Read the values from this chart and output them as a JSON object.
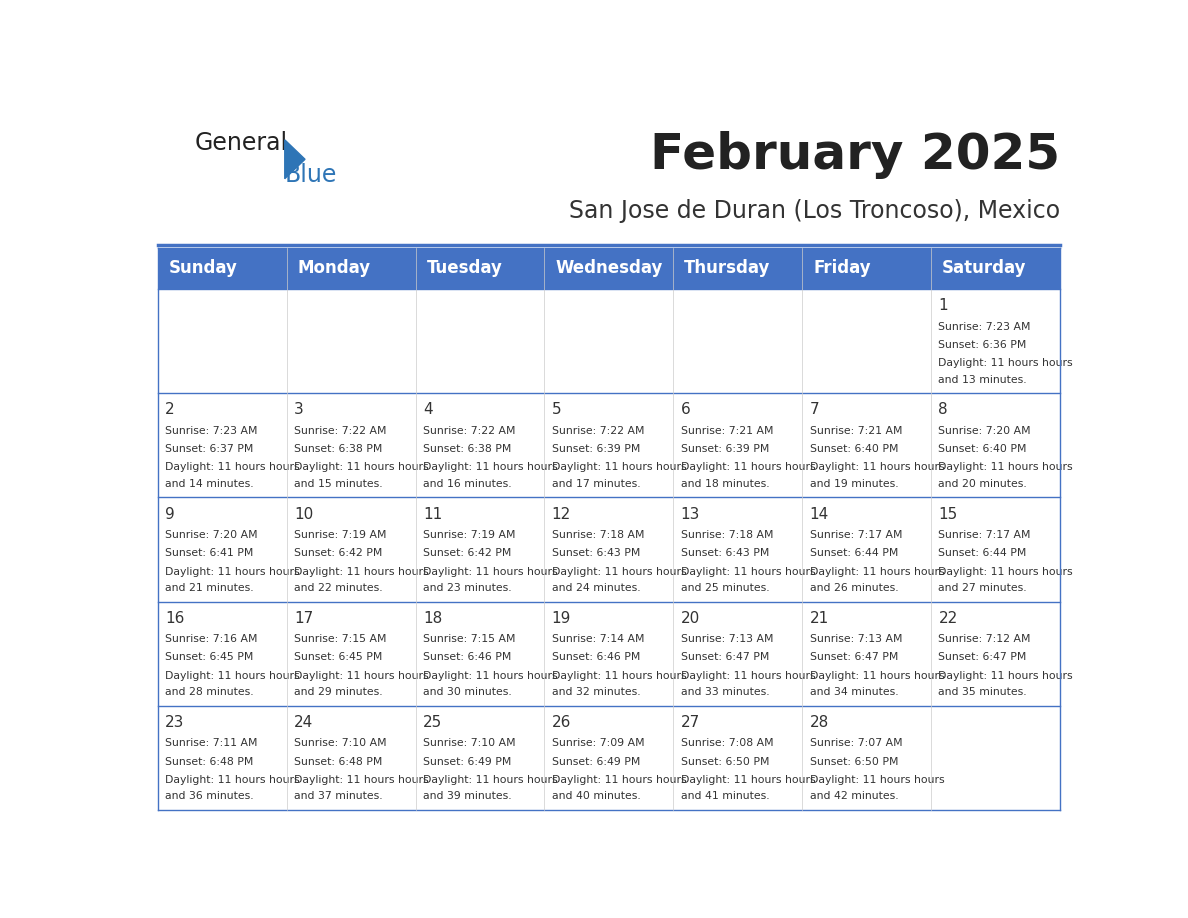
{
  "title": "February 2025",
  "subtitle": "San Jose de Duran (Los Troncoso), Mexico",
  "header_bg": "#4472C4",
  "header_text_color": "#FFFFFF",
  "header_days": [
    "Sunday",
    "Monday",
    "Tuesday",
    "Wednesday",
    "Thursday",
    "Friday",
    "Saturday"
  ],
  "odd_row_bg": "#FFFFFF",
  "even_row_bg": "#F2F2F2",
  "cell_border_color": "#4472C4",
  "day_number_color": "#333333",
  "info_text_color": "#333333",
  "background_color": "#FFFFFF",
  "title_color": "#222222",
  "subtitle_color": "#333333",
  "logo_general_color": "#222222",
  "logo_blue_color": "#2E75B6",
  "days_data": [
    {
      "day": 1,
      "col": 6,
      "row": 0,
      "sunrise": "7:23 AM",
      "sunset": "6:36 PM",
      "daylight": "11 hours and 13 minutes."
    },
    {
      "day": 2,
      "col": 0,
      "row": 1,
      "sunrise": "7:23 AM",
      "sunset": "6:37 PM",
      "daylight": "11 hours and 14 minutes."
    },
    {
      "day": 3,
      "col": 1,
      "row": 1,
      "sunrise": "7:22 AM",
      "sunset": "6:38 PM",
      "daylight": "11 hours and 15 minutes."
    },
    {
      "day": 4,
      "col": 2,
      "row": 1,
      "sunrise": "7:22 AM",
      "sunset": "6:38 PM",
      "daylight": "11 hours and 16 minutes."
    },
    {
      "day": 5,
      "col": 3,
      "row": 1,
      "sunrise": "7:22 AM",
      "sunset": "6:39 PM",
      "daylight": "11 hours and 17 minutes."
    },
    {
      "day": 6,
      "col": 4,
      "row": 1,
      "sunrise": "7:21 AM",
      "sunset": "6:39 PM",
      "daylight": "11 hours and 18 minutes."
    },
    {
      "day": 7,
      "col": 5,
      "row": 1,
      "sunrise": "7:21 AM",
      "sunset": "6:40 PM",
      "daylight": "11 hours and 19 minutes."
    },
    {
      "day": 8,
      "col": 6,
      "row": 1,
      "sunrise": "7:20 AM",
      "sunset": "6:40 PM",
      "daylight": "11 hours and 20 minutes."
    },
    {
      "day": 9,
      "col": 0,
      "row": 2,
      "sunrise": "7:20 AM",
      "sunset": "6:41 PM",
      "daylight": "11 hours and 21 minutes."
    },
    {
      "day": 10,
      "col": 1,
      "row": 2,
      "sunrise": "7:19 AM",
      "sunset": "6:42 PM",
      "daylight": "11 hours and 22 minutes."
    },
    {
      "day": 11,
      "col": 2,
      "row": 2,
      "sunrise": "7:19 AM",
      "sunset": "6:42 PM",
      "daylight": "11 hours and 23 minutes."
    },
    {
      "day": 12,
      "col": 3,
      "row": 2,
      "sunrise": "7:18 AM",
      "sunset": "6:43 PM",
      "daylight": "11 hours and 24 minutes."
    },
    {
      "day": 13,
      "col": 4,
      "row": 2,
      "sunrise": "7:18 AM",
      "sunset": "6:43 PM",
      "daylight": "11 hours and 25 minutes."
    },
    {
      "day": 14,
      "col": 5,
      "row": 2,
      "sunrise": "7:17 AM",
      "sunset": "6:44 PM",
      "daylight": "11 hours and 26 minutes."
    },
    {
      "day": 15,
      "col": 6,
      "row": 2,
      "sunrise": "7:17 AM",
      "sunset": "6:44 PM",
      "daylight": "11 hours and 27 minutes."
    },
    {
      "day": 16,
      "col": 0,
      "row": 3,
      "sunrise": "7:16 AM",
      "sunset": "6:45 PM",
      "daylight": "11 hours and 28 minutes."
    },
    {
      "day": 17,
      "col": 1,
      "row": 3,
      "sunrise": "7:15 AM",
      "sunset": "6:45 PM",
      "daylight": "11 hours and 29 minutes."
    },
    {
      "day": 18,
      "col": 2,
      "row": 3,
      "sunrise": "7:15 AM",
      "sunset": "6:46 PM",
      "daylight": "11 hours and 30 minutes."
    },
    {
      "day": 19,
      "col": 3,
      "row": 3,
      "sunrise": "7:14 AM",
      "sunset": "6:46 PM",
      "daylight": "11 hours and 32 minutes."
    },
    {
      "day": 20,
      "col": 4,
      "row": 3,
      "sunrise": "7:13 AM",
      "sunset": "6:47 PM",
      "daylight": "11 hours and 33 minutes."
    },
    {
      "day": 21,
      "col": 5,
      "row": 3,
      "sunrise": "7:13 AM",
      "sunset": "6:47 PM",
      "daylight": "11 hours and 34 minutes."
    },
    {
      "day": 22,
      "col": 6,
      "row": 3,
      "sunrise": "7:12 AM",
      "sunset": "6:47 PM",
      "daylight": "11 hours and 35 minutes."
    },
    {
      "day": 23,
      "col": 0,
      "row": 4,
      "sunrise": "7:11 AM",
      "sunset": "6:48 PM",
      "daylight": "11 hours and 36 minutes."
    },
    {
      "day": 24,
      "col": 1,
      "row": 4,
      "sunrise": "7:10 AM",
      "sunset": "6:48 PM",
      "daylight": "11 hours and 37 minutes."
    },
    {
      "day": 25,
      "col": 2,
      "row": 4,
      "sunrise": "7:10 AM",
      "sunset": "6:49 PM",
      "daylight": "11 hours and 39 minutes."
    },
    {
      "day": 26,
      "col": 3,
      "row": 4,
      "sunrise": "7:09 AM",
      "sunset": "6:49 PM",
      "daylight": "11 hours and 40 minutes."
    },
    {
      "day": 27,
      "col": 4,
      "row": 4,
      "sunrise": "7:08 AM",
      "sunset": "6:50 PM",
      "daylight": "11 hours and 41 minutes."
    },
    {
      "day": 28,
      "col": 5,
      "row": 4,
      "sunrise": "7:07 AM",
      "sunset": "6:50 PM",
      "daylight": "11 hours and 42 minutes."
    }
  ]
}
